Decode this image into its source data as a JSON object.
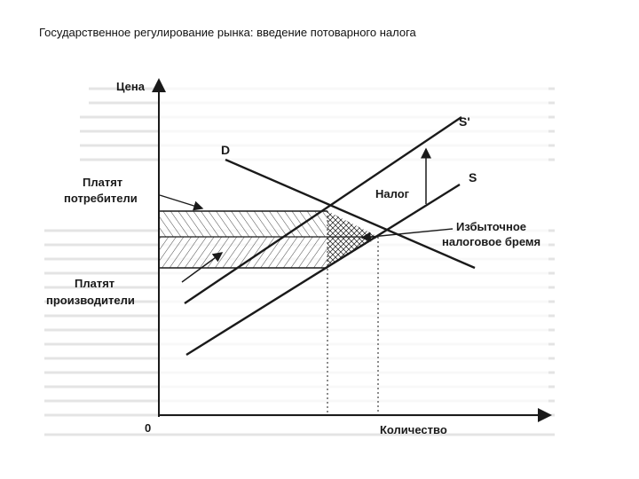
{
  "slide": {
    "title": "Государственное регулирование рынка: введение потоварного налога"
  },
  "diagram": {
    "axes": {
      "y_label": "Цена",
      "x_label": "Количество",
      "origin_label": "0"
    },
    "curves": {
      "demand": "D",
      "supply": "S",
      "supply_with_tax": "S'"
    },
    "annotations": {
      "tax": "Налог",
      "consumers_line1": "Платят",
      "consumers_line2": "потребители",
      "producers_line1": "Платят",
      "producers_line2": "производители",
      "deadweight_line1": "Избыточное",
      "deadweight_line2": "налоговое бремя"
    },
    "colors": {
      "ink": "#1a1a1a",
      "background_text": "#c8c8c8",
      "paper": "#ffffff"
    }
  }
}
